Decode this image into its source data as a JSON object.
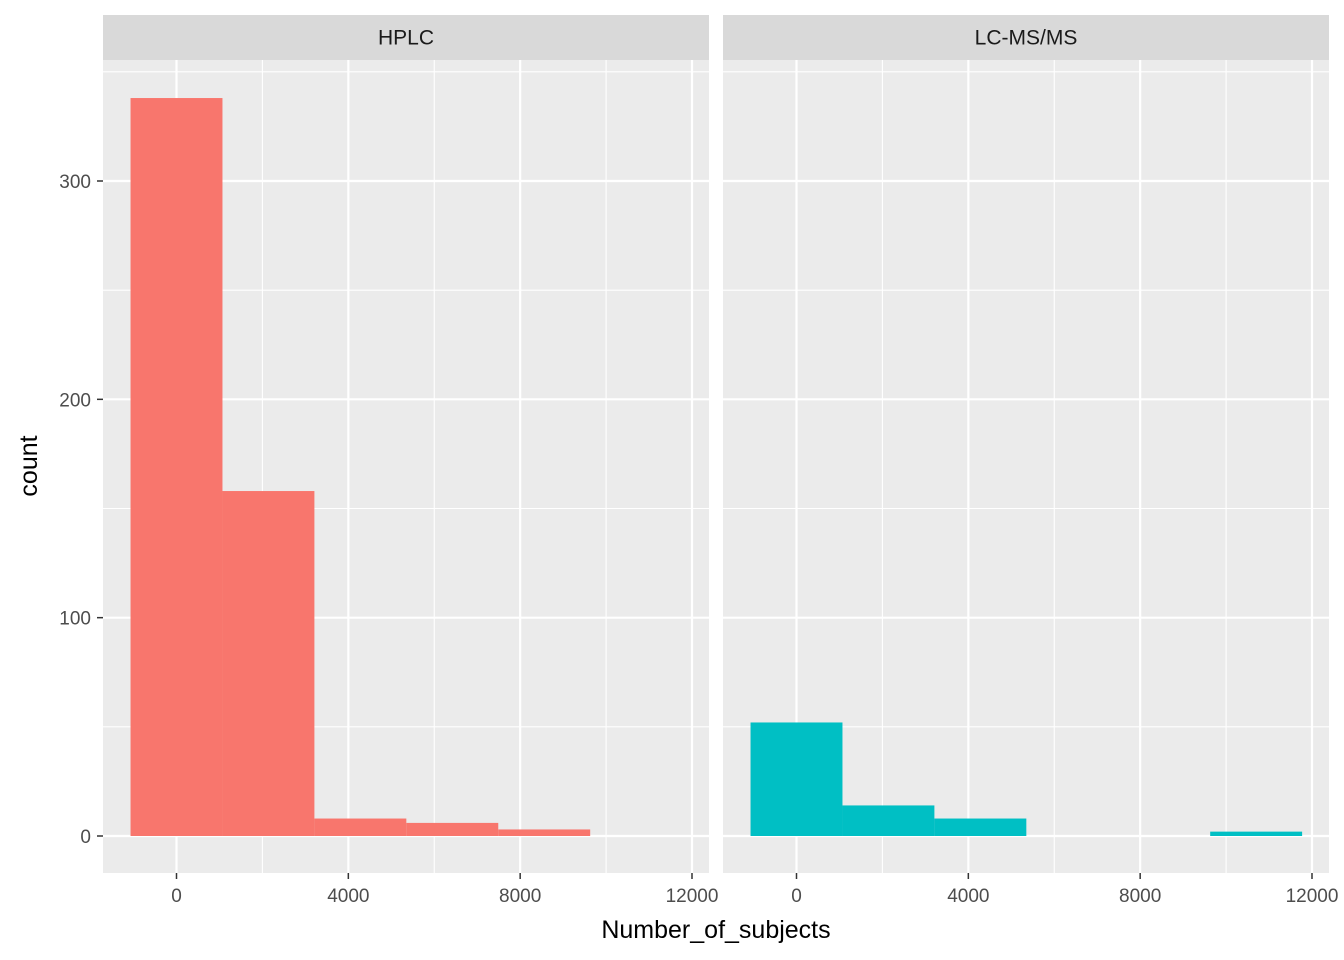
{
  "chart_data": {
    "type": "bar",
    "subtype": "histogram",
    "xlabel": "Number_of_subjects",
    "ylabel": "count",
    "xlim": [
      -1700,
      12000
    ],
    "ylim": [
      0,
      350
    ],
    "x_ticks": [
      0,
      4000,
      8000,
      12000
    ],
    "y_ticks": [
      0,
      100,
      200,
      300
    ],
    "grid": true,
    "legend": "none",
    "bins": [
      [
        -1070,
        1070
      ],
      [
        1070,
        3210
      ],
      [
        3210,
        5350
      ],
      [
        5350,
        7490
      ],
      [
        7490,
        9630
      ],
      [
        9630,
        11770
      ]
    ],
    "panels": [
      {
        "name": "HPLC",
        "color": "#F8766D",
        "values": [
          338,
          158,
          8,
          6,
          3,
          0
        ]
      },
      {
        "name": "LC-MS/MS",
        "color": "#00BFC4",
        "values": [
          52,
          14,
          8,
          0,
          0,
          2
        ]
      }
    ]
  }
}
